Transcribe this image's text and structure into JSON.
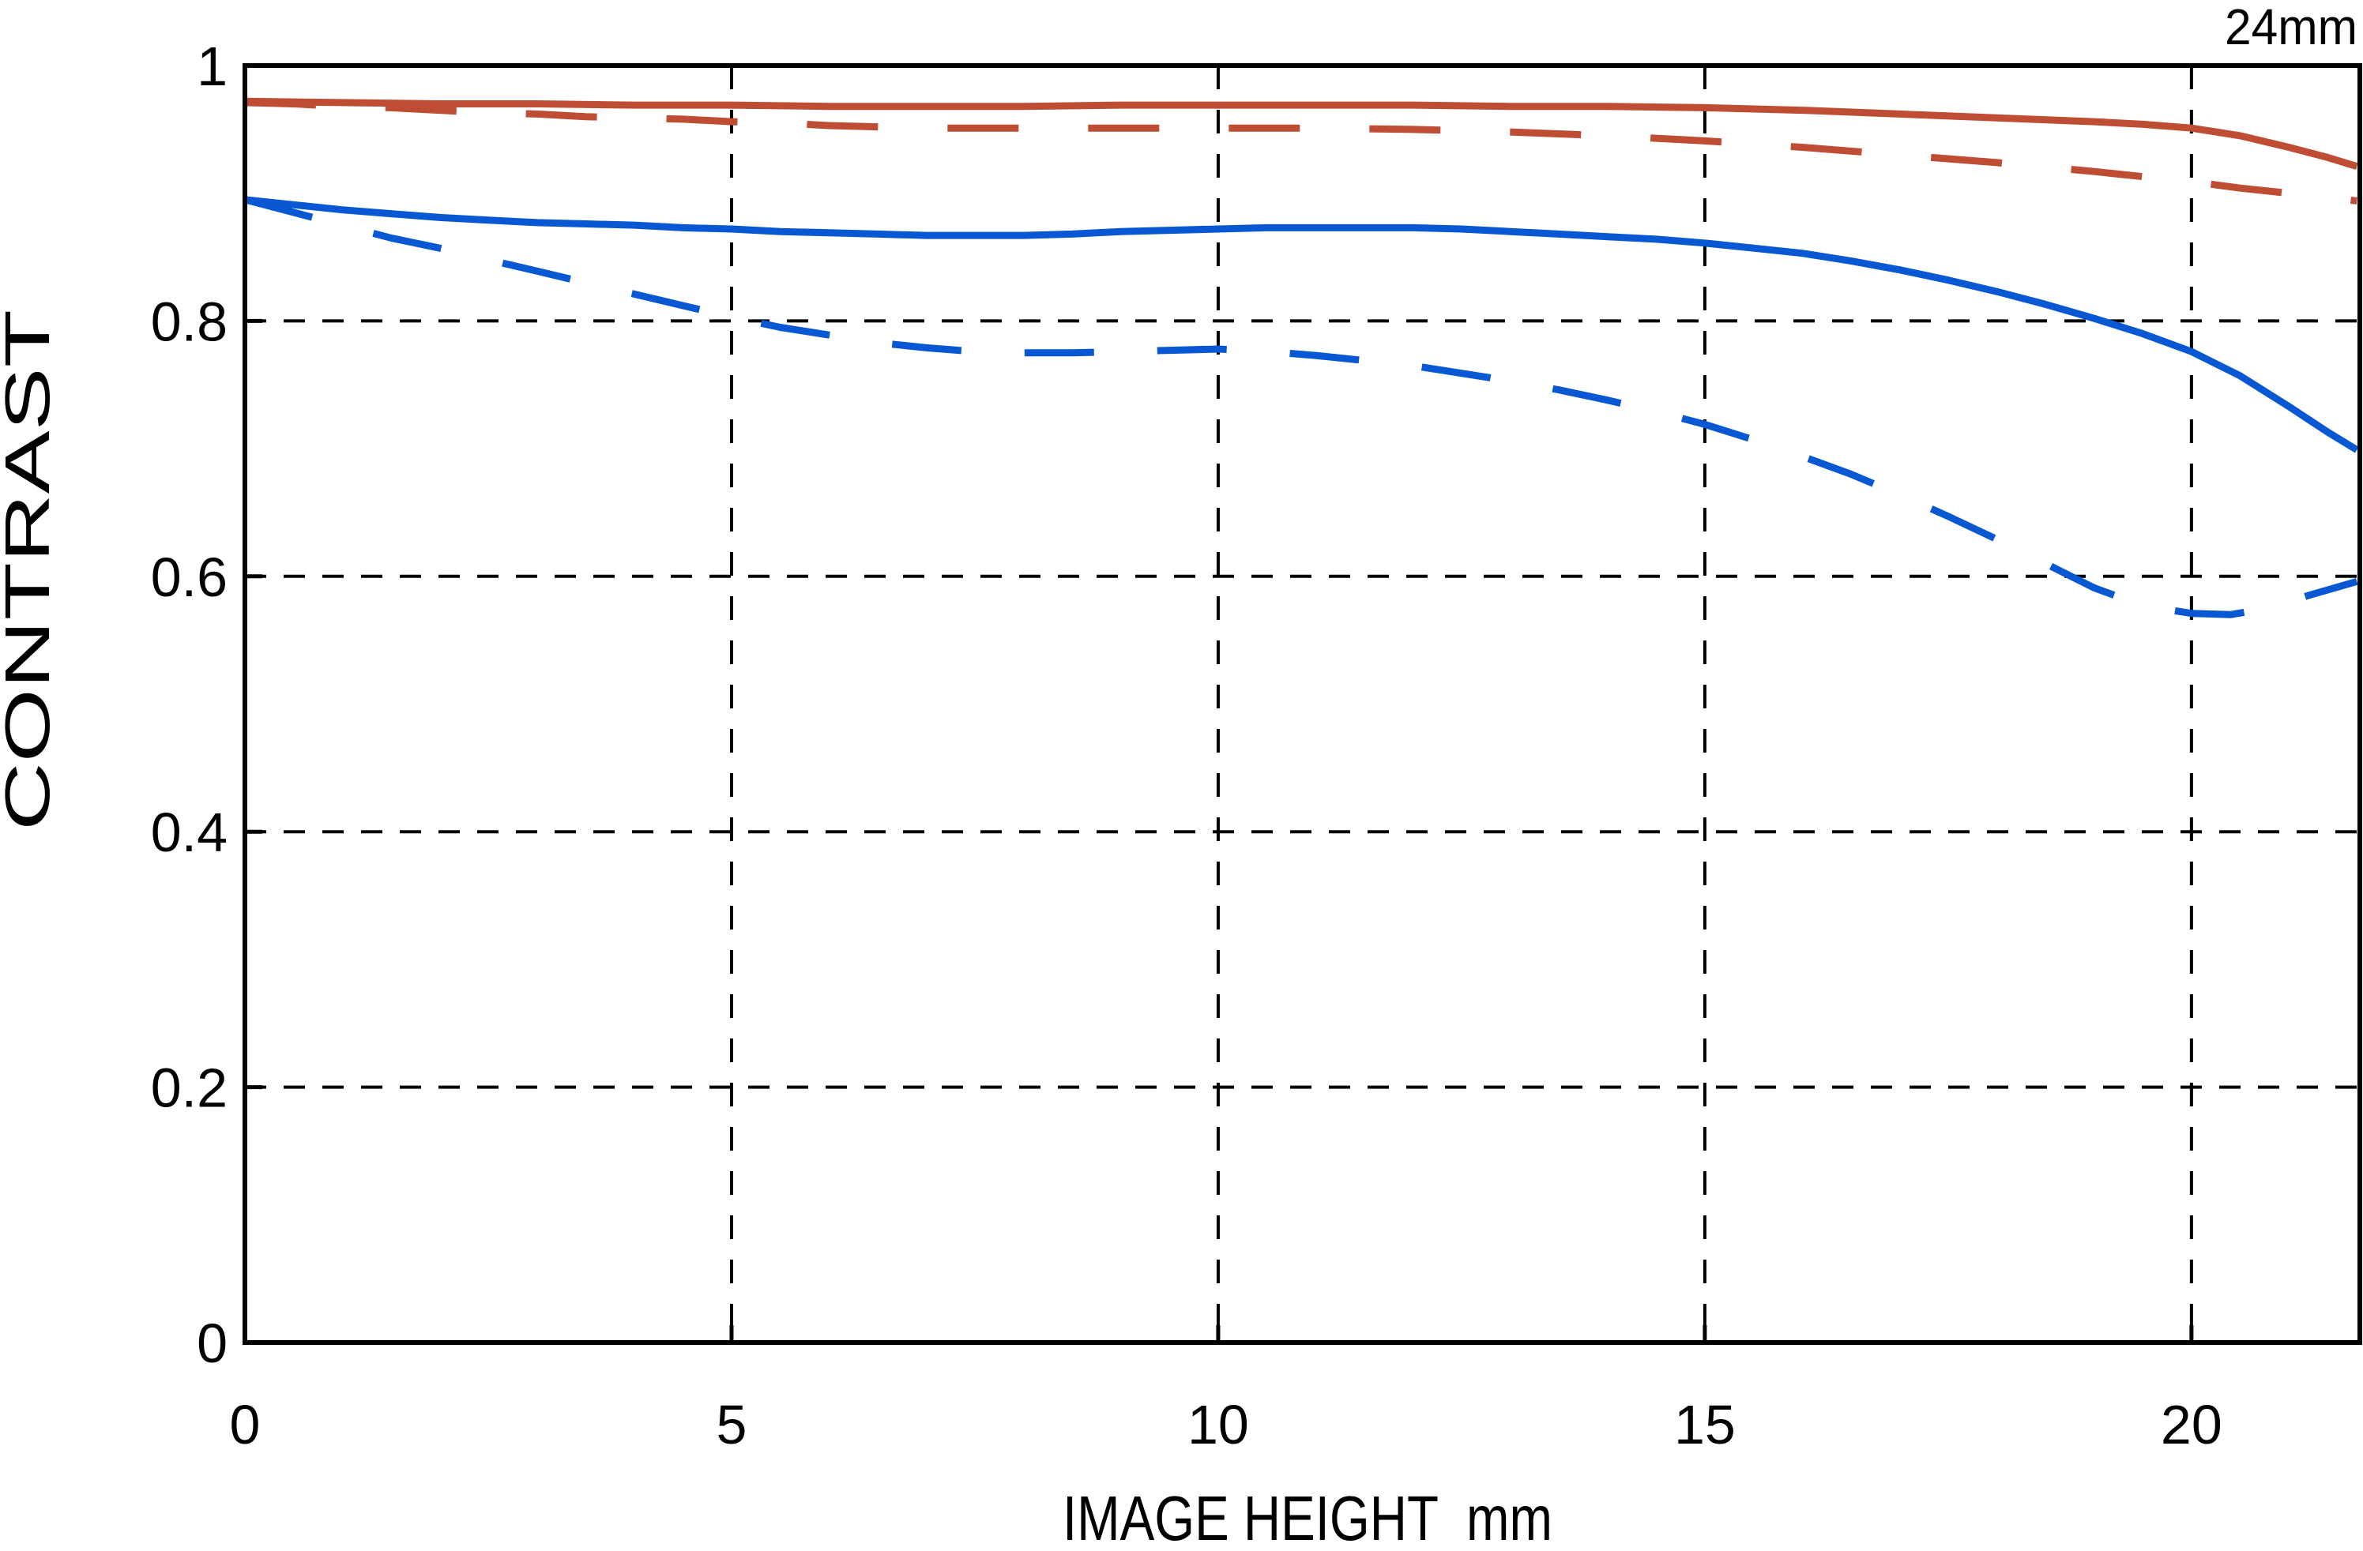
{
  "chart_data": {
    "type": "line",
    "title": "24mm",
    "xlabel": "IMAGE HEIGHT  mm",
    "ylabel": "CONTRAST",
    "xlim": [
      0,
      21.73
    ],
    "ylim": [
      0,
      1
    ],
    "x_ticks": [
      0,
      5,
      10,
      15,
      20
    ],
    "y_ticks": [
      0,
      0.2,
      0.4,
      0.6,
      0.8,
      1
    ],
    "grid": "dashed",
    "legend_position": "none",
    "colors": {
      "red": "#bf4d33",
      "blue": "#0857d3",
      "axis": "#000000",
      "background": "#ffffff"
    },
    "series": [
      {
        "name": "red-solid",
        "color": "#bf4d33",
        "style": "solid",
        "points": [
          [
            0,
            0.972
          ],
          [
            1,
            0.971
          ],
          [
            2,
            0.97
          ],
          [
            3,
            0.97
          ],
          [
            4,
            0.969
          ],
          [
            5,
            0.969
          ],
          [
            6,
            0.968
          ],
          [
            7,
            0.968
          ],
          [
            8,
            0.968
          ],
          [
            9,
            0.969
          ],
          [
            10,
            0.969
          ],
          [
            11,
            0.969
          ],
          [
            12,
            0.969
          ],
          [
            13,
            0.968
          ],
          [
            14,
            0.968
          ],
          [
            15,
            0.967
          ],
          [
            16,
            0.965
          ],
          [
            17,
            0.962
          ],
          [
            18,
            0.959
          ],
          [
            19,
            0.956
          ],
          [
            19.5,
            0.954
          ],
          [
            20,
            0.951
          ],
          [
            20.5,
            0.945
          ],
          [
            21,
            0.936
          ],
          [
            21.4,
            0.928
          ],
          [
            21.7,
            0.921
          ]
        ]
      },
      {
        "name": "red-dashed",
        "color": "#bf4d33",
        "style": "dashed",
        "points": [
          [
            0,
            0.971
          ],
          [
            0.5,
            0.97
          ],
          [
            1,
            0.968
          ],
          [
            1.5,
            0.967
          ],
          [
            2,
            0.965
          ],
          [
            2.5,
            0.963
          ],
          [
            3,
            0.962
          ],
          [
            3.5,
            0.96
          ],
          [
            4,
            0.959
          ],
          [
            4.5,
            0.958
          ],
          [
            5,
            0.956
          ],
          [
            5.5,
            0.955
          ],
          [
            6,
            0.953
          ],
          [
            6.5,
            0.952
          ],
          [
            7,
            0.951
          ],
          [
            8,
            0.951
          ],
          [
            9,
            0.951
          ],
          [
            10,
            0.951
          ],
          [
            11,
            0.951
          ],
          [
            12,
            0.95
          ],
          [
            13,
            0.948
          ],
          [
            14,
            0.945
          ],
          [
            15,
            0.941
          ],
          [
            16,
            0.936
          ],
          [
            17,
            0.93
          ],
          [
            18,
            0.924
          ],
          [
            19,
            0.917
          ],
          [
            19.5,
            0.913
          ],
          [
            20,
            0.909
          ],
          [
            20.5,
            0.904
          ],
          [
            21,
            0.9
          ],
          [
            21.7,
            0.894
          ]
        ]
      },
      {
        "name": "blue-solid",
        "color": "#0857d3",
        "style": "solid",
        "points": [
          [
            0,
            0.895
          ],
          [
            0.5,
            0.891
          ],
          [
            1,
            0.887
          ],
          [
            1.5,
            0.884
          ],
          [
            2,
            0.881
          ],
          [
            2.5,
            0.879
          ],
          [
            3,
            0.877
          ],
          [
            3.5,
            0.876
          ],
          [
            4,
            0.875
          ],
          [
            4.5,
            0.873
          ],
          [
            5,
            0.872
          ],
          [
            5.5,
            0.87
          ],
          [
            6,
            0.869
          ],
          [
            6.5,
            0.868
          ],
          [
            7,
            0.867
          ],
          [
            7.5,
            0.867
          ],
          [
            8,
            0.867
          ],
          [
            8.5,
            0.868
          ],
          [
            9,
            0.87
          ],
          [
            9.5,
            0.871
          ],
          [
            10,
            0.872
          ],
          [
            10.5,
            0.873
          ],
          [
            11,
            0.873
          ],
          [
            11.5,
            0.873
          ],
          [
            12,
            0.873
          ],
          [
            12.5,
            0.872
          ],
          [
            13,
            0.87
          ],
          [
            13.5,
            0.868
          ],
          [
            14,
            0.866
          ],
          [
            14.5,
            0.864
          ],
          [
            15,
            0.861
          ],
          [
            15.5,
            0.857
          ],
          [
            16,
            0.853
          ],
          [
            16.5,
            0.847
          ],
          [
            17,
            0.84
          ],
          [
            17.5,
            0.832
          ],
          [
            18,
            0.823
          ],
          [
            18.5,
            0.813
          ],
          [
            19,
            0.802
          ],
          [
            19.5,
            0.79
          ],
          [
            20,
            0.776
          ],
          [
            20.5,
            0.757
          ],
          [
            21,
            0.733
          ],
          [
            21.4,
            0.713
          ],
          [
            21.7,
            0.699
          ]
        ]
      },
      {
        "name": "blue-dashed",
        "color": "#0857d3",
        "style": "dashed",
        "points": [
          [
            0,
            0.895
          ],
          [
            0.3,
            0.889
          ],
          [
            0.7,
            0.881
          ],
          [
            1,
            0.875
          ],
          [
            1.5,
            0.865
          ],
          [
            2,
            0.857
          ],
          [
            2.5,
            0.848
          ],
          [
            3,
            0.839
          ],
          [
            3.5,
            0.83
          ],
          [
            4,
            0.821
          ],
          [
            4.5,
            0.812
          ],
          [
            5,
            0.803
          ],
          [
            5.5,
            0.795
          ],
          [
            6,
            0.789
          ],
          [
            6.5,
            0.783
          ],
          [
            7,
            0.779
          ],
          [
            7.5,
            0.776
          ],
          [
            8,
            0.775
          ],
          [
            8.5,
            0.775
          ],
          [
            9,
            0.776
          ],
          [
            9.5,
            0.777
          ],
          [
            10,
            0.778
          ],
          [
            10.5,
            0.776
          ],
          [
            11,
            0.773
          ],
          [
            11.5,
            0.769
          ],
          [
            12,
            0.765
          ],
          [
            12.5,
            0.759
          ],
          [
            13,
            0.753
          ],
          [
            13.5,
            0.746
          ],
          [
            14,
            0.738
          ],
          [
            14.5,
            0.729
          ],
          [
            15,
            0.719
          ],
          [
            15.5,
            0.707
          ],
          [
            16,
            0.694
          ],
          [
            16.5,
            0.68
          ],
          [
            17,
            0.664
          ],
          [
            17.5,
            0.647
          ],
          [
            18,
            0.629
          ],
          [
            18.5,
            0.61
          ],
          [
            19,
            0.591
          ],
          [
            19.5,
            0.577
          ],
          [
            20,
            0.571
          ],
          [
            20.4,
            0.57
          ],
          [
            20.8,
            0.575
          ],
          [
            21.2,
            0.585
          ],
          [
            21.7,
            0.596
          ]
        ]
      }
    ]
  }
}
